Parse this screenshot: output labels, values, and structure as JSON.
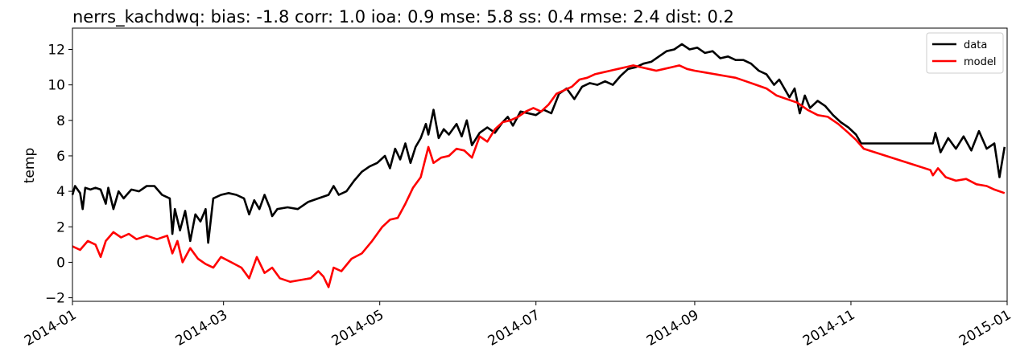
{
  "chart_data": {
    "type": "line",
    "title": "nerrs_kachdwq: bias: -1.8  corr: 1.0  ioa: 0.9  mse: 5.8  ss: 0.4  rmse: 2.4  dist: 0.2",
    "xlabel": "",
    "ylabel": "temp",
    "xlim": [
      "2014-01-01",
      "2015-01-01"
    ],
    "ylim": [
      -2.2,
      13.2
    ],
    "x_ticks": [
      "2014-01",
      "2014-03",
      "2014-05",
      "2014-07",
      "2014-09",
      "2014-11",
      "2015-01"
    ],
    "y_ticks": [
      -2,
      0,
      2,
      4,
      6,
      8,
      10,
      12
    ],
    "grid": false,
    "legend_position": "top-right",
    "series": [
      {
        "name": "data",
        "color": "#000000",
        "points": [
          [
            "2014-01-01",
            3.8
          ],
          [
            "2014-01-02",
            4.3
          ],
          [
            "2014-01-04",
            3.9
          ],
          [
            "2014-01-05",
            3.0
          ],
          [
            "2014-01-06",
            4.2
          ],
          [
            "2014-01-08",
            4.1
          ],
          [
            "2014-01-10",
            4.2
          ],
          [
            "2014-01-12",
            4.1
          ],
          [
            "2014-01-14",
            3.3
          ],
          [
            "2014-01-15",
            4.2
          ],
          [
            "2014-01-17",
            3.0
          ],
          [
            "2014-01-19",
            4.0
          ],
          [
            "2014-01-21",
            3.6
          ],
          [
            "2014-01-24",
            4.1
          ],
          [
            "2014-01-27",
            4.0
          ],
          [
            "2014-01-30",
            4.3
          ],
          [
            "2014-02-02",
            4.3
          ],
          [
            "2014-02-05",
            3.8
          ],
          [
            "2014-02-08",
            3.6
          ],
          [
            "2014-02-09",
            1.6
          ],
          [
            "2014-02-10",
            3.0
          ],
          [
            "2014-02-12",
            1.8
          ],
          [
            "2014-02-14",
            2.9
          ],
          [
            "2014-02-16",
            1.2
          ],
          [
            "2014-02-18",
            2.7
          ],
          [
            "2014-02-20",
            2.3
          ],
          [
            "2014-02-22",
            3.0
          ],
          [
            "2014-02-23",
            1.1
          ],
          [
            "2014-02-25",
            3.6
          ],
          [
            "2014-02-28",
            3.8
          ],
          [
            "2014-03-03",
            3.9
          ],
          [
            "2014-03-06",
            3.8
          ],
          [
            "2014-03-09",
            3.6
          ],
          [
            "2014-03-11",
            2.7
          ],
          [
            "2014-03-13",
            3.5
          ],
          [
            "2014-03-15",
            3.0
          ],
          [
            "2014-03-17",
            3.8
          ],
          [
            "2014-03-19",
            3.1
          ],
          [
            "2014-03-20",
            2.6
          ],
          [
            "2014-03-22",
            3.0
          ],
          [
            "2014-03-26",
            3.1
          ],
          [
            "2014-03-30",
            3.0
          ],
          [
            "2014-04-03",
            3.4
          ],
          [
            "2014-04-07",
            3.6
          ],
          [
            "2014-04-11",
            3.8
          ],
          [
            "2014-04-13",
            4.3
          ],
          [
            "2014-04-15",
            3.8
          ],
          [
            "2014-04-18",
            4.0
          ],
          [
            "2014-04-21",
            4.6
          ],
          [
            "2014-04-24",
            5.1
          ],
          [
            "2014-04-27",
            5.4
          ],
          [
            "2014-04-30",
            5.6
          ],
          [
            "2014-05-03",
            6.0
          ],
          [
            "2014-05-05",
            5.3
          ],
          [
            "2014-05-07",
            6.4
          ],
          [
            "2014-05-09",
            5.8
          ],
          [
            "2014-05-11",
            6.7
          ],
          [
            "2014-05-13",
            5.6
          ],
          [
            "2014-05-15",
            6.5
          ],
          [
            "2014-05-17",
            7.0
          ],
          [
            "2014-05-19",
            7.8
          ],
          [
            "2014-05-20",
            7.2
          ],
          [
            "2014-05-22",
            8.6
          ],
          [
            "2014-05-24",
            7.0
          ],
          [
            "2014-05-26",
            7.5
          ],
          [
            "2014-05-28",
            7.2
          ],
          [
            "2014-05-31",
            7.8
          ],
          [
            "2014-06-02",
            7.1
          ],
          [
            "2014-06-04",
            8.0
          ],
          [
            "2014-06-06",
            6.6
          ],
          [
            "2014-06-09",
            7.3
          ],
          [
            "2014-06-12",
            7.6
          ],
          [
            "2014-06-15",
            7.3
          ],
          [
            "2014-06-18",
            7.9
          ],
          [
            "2014-06-20",
            8.2
          ],
          [
            "2014-06-22",
            7.7
          ],
          [
            "2014-06-25",
            8.5
          ],
          [
            "2014-06-28",
            8.4
          ],
          [
            "2014-07-01",
            8.3
          ],
          [
            "2014-07-04",
            8.6
          ],
          [
            "2014-07-07",
            8.4
          ],
          [
            "2014-07-10",
            9.5
          ],
          [
            "2014-07-13",
            9.8
          ],
          [
            "2014-07-16",
            9.2
          ],
          [
            "2014-07-19",
            9.9
          ],
          [
            "2014-07-22",
            10.1
          ],
          [
            "2014-07-25",
            10.0
          ],
          [
            "2014-07-28",
            10.2
          ],
          [
            "2014-07-31",
            10.0
          ],
          [
            "2014-08-03",
            10.5
          ],
          [
            "2014-08-06",
            10.9
          ],
          [
            "2014-08-09",
            11.0
          ],
          [
            "2014-08-12",
            11.2
          ],
          [
            "2014-08-15",
            11.3
          ],
          [
            "2014-08-18",
            11.6
          ],
          [
            "2014-08-21",
            11.9
          ],
          [
            "2014-08-24",
            12.0
          ],
          [
            "2014-08-27",
            12.3
          ],
          [
            "2014-08-30",
            12.0
          ],
          [
            "2014-09-02",
            12.1
          ],
          [
            "2014-09-05",
            11.8
          ],
          [
            "2014-09-08",
            11.9
          ],
          [
            "2014-09-11",
            11.5
          ],
          [
            "2014-09-14",
            11.6
          ],
          [
            "2014-09-17",
            11.4
          ],
          [
            "2014-09-20",
            11.4
          ],
          [
            "2014-09-23",
            11.2
          ],
          [
            "2014-09-26",
            10.8
          ],
          [
            "2014-09-29",
            10.6
          ],
          [
            "2014-10-02",
            10.0
          ],
          [
            "2014-10-04",
            10.3
          ],
          [
            "2014-10-06",
            9.8
          ],
          [
            "2014-10-08",
            9.3
          ],
          [
            "2014-10-10",
            9.8
          ],
          [
            "2014-10-12",
            8.4
          ],
          [
            "2014-10-14",
            9.4
          ],
          [
            "2014-10-16",
            8.7
          ],
          [
            "2014-10-19",
            9.1
          ],
          [
            "2014-10-22",
            8.8
          ],
          [
            "2014-10-25",
            8.3
          ],
          [
            "2014-10-28",
            7.9
          ],
          [
            "2014-10-31",
            7.6
          ],
          [
            "2014-11-03",
            7.2
          ],
          [
            "2014-11-05",
            6.7
          ],
          [
            "2014-11-20",
            6.7
          ],
          [
            "2014-12-03",
            6.7
          ],
          [
            "2014-12-04",
            7.3
          ],
          [
            "2014-12-06",
            6.2
          ],
          [
            "2014-12-09",
            7.0
          ],
          [
            "2014-12-12",
            6.4
          ],
          [
            "2014-12-15",
            7.1
          ],
          [
            "2014-12-18",
            6.3
          ],
          [
            "2014-12-21",
            7.4
          ],
          [
            "2014-12-24",
            6.4
          ],
          [
            "2014-12-27",
            6.7
          ],
          [
            "2014-12-29",
            4.8
          ],
          [
            "2014-12-31",
            6.5
          ]
        ]
      },
      {
        "name": "model",
        "color": "#ff0000",
        "points": [
          [
            "2014-01-01",
            0.9
          ],
          [
            "2014-01-04",
            0.7
          ],
          [
            "2014-01-07",
            1.2
          ],
          [
            "2014-01-10",
            1.0
          ],
          [
            "2014-01-12",
            0.3
          ],
          [
            "2014-01-14",
            1.2
          ],
          [
            "2014-01-17",
            1.7
          ],
          [
            "2014-01-20",
            1.4
          ],
          [
            "2014-01-23",
            1.6
          ],
          [
            "2014-01-26",
            1.3
          ],
          [
            "2014-01-30",
            1.5
          ],
          [
            "2014-02-03",
            1.3
          ],
          [
            "2014-02-07",
            1.5
          ],
          [
            "2014-02-09",
            0.5
          ],
          [
            "2014-02-11",
            1.2
          ],
          [
            "2014-02-13",
            0.0
          ],
          [
            "2014-02-16",
            0.8
          ],
          [
            "2014-02-19",
            0.2
          ],
          [
            "2014-02-22",
            -0.1
          ],
          [
            "2014-02-25",
            -0.3
          ],
          [
            "2014-02-28",
            0.3
          ],
          [
            "2014-03-04",
            0.0
          ],
          [
            "2014-03-08",
            -0.3
          ],
          [
            "2014-03-11",
            -0.9
          ],
          [
            "2014-03-14",
            0.3
          ],
          [
            "2014-03-17",
            -0.6
          ],
          [
            "2014-03-20",
            -0.3
          ],
          [
            "2014-03-23",
            -0.9
          ],
          [
            "2014-03-27",
            -1.1
          ],
          [
            "2014-03-31",
            -1.0
          ],
          [
            "2014-04-04",
            -0.9
          ],
          [
            "2014-04-07",
            -0.5
          ],
          [
            "2014-04-09",
            -0.8
          ],
          [
            "2014-04-11",
            -1.4
          ],
          [
            "2014-04-13",
            -0.3
          ],
          [
            "2014-04-16",
            -0.5
          ],
          [
            "2014-04-20",
            0.2
          ],
          [
            "2014-04-24",
            0.5
          ],
          [
            "2014-04-28",
            1.2
          ],
          [
            "2014-05-02",
            2.0
          ],
          [
            "2014-05-05",
            2.4
          ],
          [
            "2014-05-08",
            2.5
          ],
          [
            "2014-05-11",
            3.3
          ],
          [
            "2014-05-14",
            4.2
          ],
          [
            "2014-05-17",
            4.8
          ],
          [
            "2014-05-20",
            6.5
          ],
          [
            "2014-05-22",
            5.6
          ],
          [
            "2014-05-25",
            5.9
          ],
          [
            "2014-05-28",
            6.0
          ],
          [
            "2014-05-31",
            6.4
          ],
          [
            "2014-06-03",
            6.3
          ],
          [
            "2014-06-06",
            5.9
          ],
          [
            "2014-06-09",
            7.1
          ],
          [
            "2014-06-12",
            6.8
          ],
          [
            "2014-06-15",
            7.5
          ],
          [
            "2014-06-18",
            7.9
          ],
          [
            "2014-06-21",
            8.0
          ],
          [
            "2014-06-24",
            8.2
          ],
          [
            "2014-06-27",
            8.5
          ],
          [
            "2014-06-30",
            8.7
          ],
          [
            "2014-07-03",
            8.5
          ],
          [
            "2014-07-06",
            8.9
          ],
          [
            "2014-07-09",
            9.5
          ],
          [
            "2014-07-12",
            9.7
          ],
          [
            "2014-07-15",
            9.9
          ],
          [
            "2014-07-18",
            10.3
          ],
          [
            "2014-07-21",
            10.4
          ],
          [
            "2014-07-24",
            10.6
          ],
          [
            "2014-07-27",
            10.7
          ],
          [
            "2014-07-30",
            10.8
          ],
          [
            "2014-08-02",
            10.9
          ],
          [
            "2014-08-05",
            11.0
          ],
          [
            "2014-08-08",
            11.1
          ],
          [
            "2014-08-11",
            11.0
          ],
          [
            "2014-08-14",
            10.9
          ],
          [
            "2014-08-17",
            10.8
          ],
          [
            "2014-08-20",
            10.9
          ],
          [
            "2014-08-23",
            11.0
          ],
          [
            "2014-08-26",
            11.1
          ],
          [
            "2014-08-29",
            10.9
          ],
          [
            "2014-09-01",
            10.8
          ],
          [
            "2014-09-05",
            10.7
          ],
          [
            "2014-09-09",
            10.6
          ],
          [
            "2014-09-13",
            10.5
          ],
          [
            "2014-09-17",
            10.4
          ],
          [
            "2014-09-21",
            10.2
          ],
          [
            "2014-09-25",
            10.0
          ],
          [
            "2014-09-29",
            9.8
          ],
          [
            "2014-10-03",
            9.4
          ],
          [
            "2014-10-07",
            9.2
          ],
          [
            "2014-10-11",
            9.0
          ],
          [
            "2014-10-15",
            8.6
          ],
          [
            "2014-10-19",
            8.3
          ],
          [
            "2014-10-23",
            8.2
          ],
          [
            "2014-10-27",
            7.8
          ],
          [
            "2014-10-31",
            7.3
          ],
          [
            "2014-11-03",
            6.9
          ],
          [
            "2014-11-06",
            6.4
          ],
          [
            "2014-12-02",
            5.2
          ],
          [
            "2014-12-03",
            4.9
          ],
          [
            "2014-12-05",
            5.3
          ],
          [
            "2014-12-08",
            4.8
          ],
          [
            "2014-12-12",
            4.6
          ],
          [
            "2014-12-16",
            4.7
          ],
          [
            "2014-12-20",
            4.4
          ],
          [
            "2014-12-24",
            4.3
          ],
          [
            "2014-12-27",
            4.1
          ],
          [
            "2014-12-31",
            3.9
          ]
        ]
      }
    ]
  }
}
